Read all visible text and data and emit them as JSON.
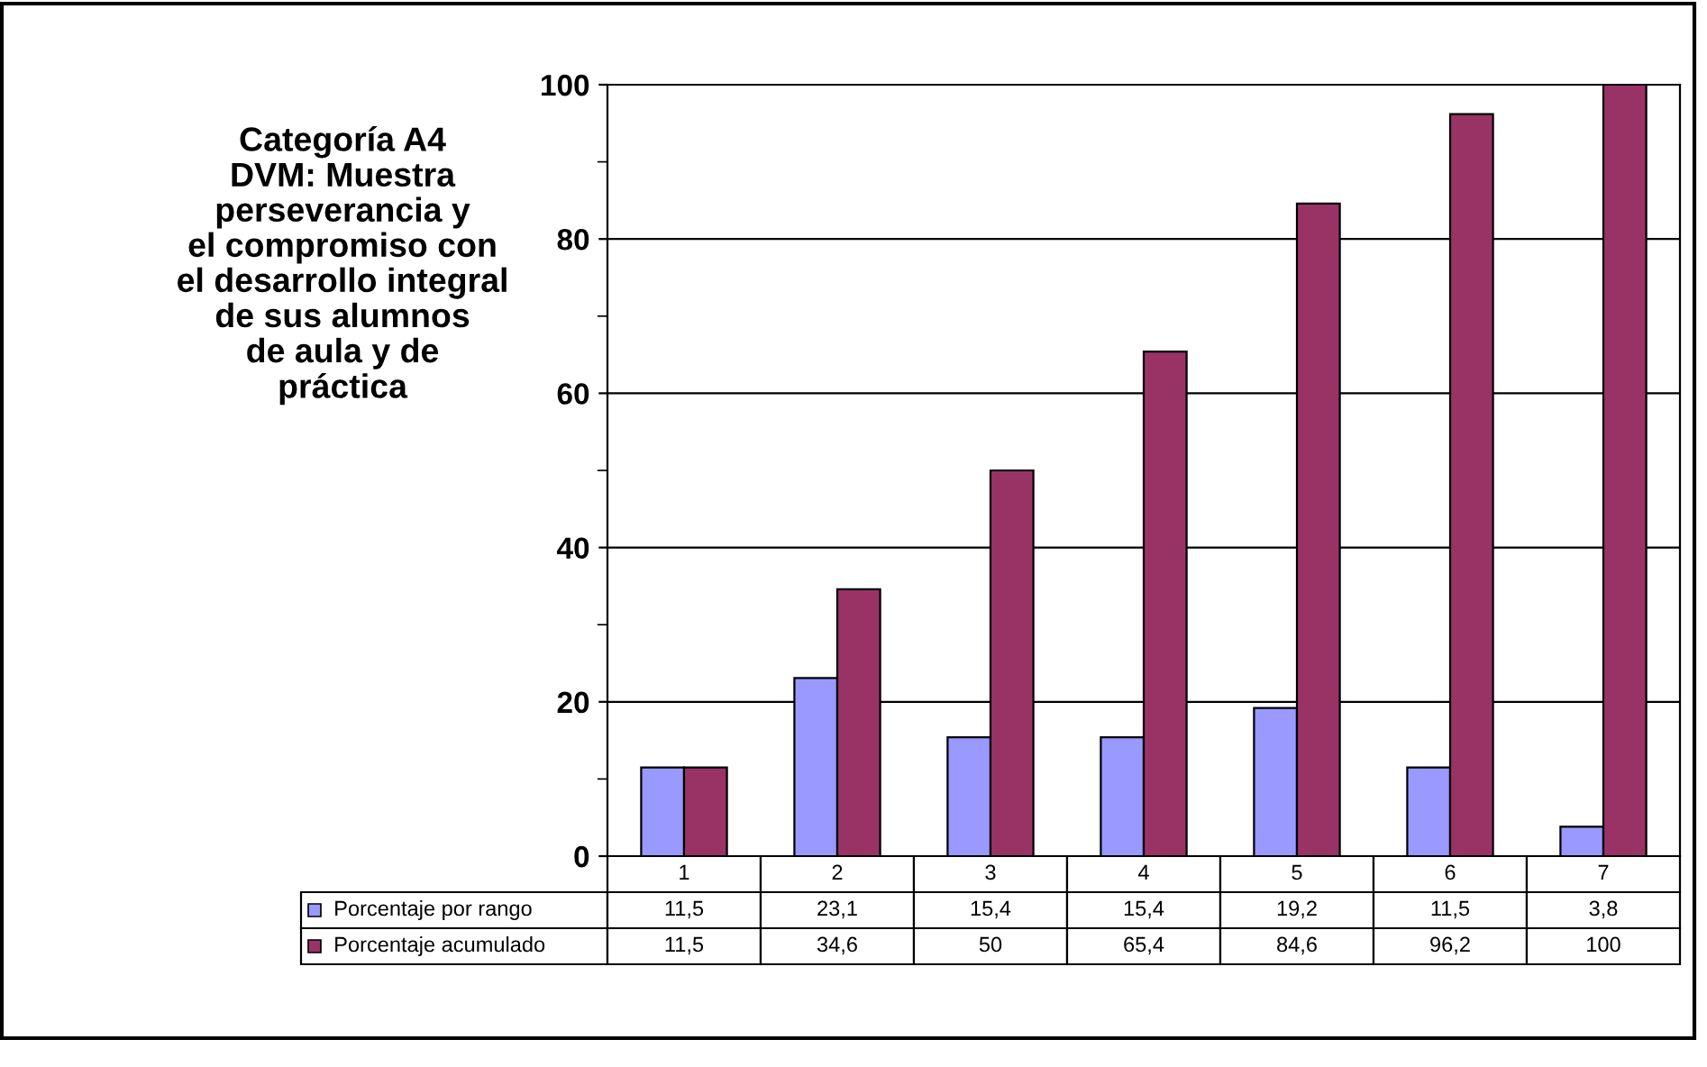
{
  "chart_data": {
    "type": "bar",
    "title": "Categoría A4\nDVM: Muestra\nperseverancia y\nel compromiso con\nel desarrollo integral\nde sus alumnos\nde aula y de\npráctica",
    "categories": [
      "1",
      "2",
      "3",
      "4",
      "5",
      "6",
      "7"
    ],
    "series": [
      {
        "name": "Porcentaje por rango",
        "color": "#9999ff",
        "values": [
          11.5,
          23.1,
          15.4,
          15.4,
          19.2,
          11.5,
          3.8
        ],
        "value_labels": [
          "11,5",
          "23,1",
          "15,4",
          "15,4",
          "19,2",
          "11,5",
          "3,8"
        ]
      },
      {
        "name": "Porcentaje acumulado",
        "color": "#993366",
        "values": [
          11.5,
          34.6,
          50,
          65.4,
          84.6,
          96.2,
          100
        ],
        "value_labels": [
          "11,5",
          "34,6",
          "50",
          "65,4",
          "84,6",
          "96,2",
          "100"
        ]
      }
    ],
    "ylim": [
      0,
      100
    ],
    "yticks": [
      0,
      20,
      40,
      60,
      80,
      100
    ],
    "grid": "y",
    "legend": "bottom"
  }
}
